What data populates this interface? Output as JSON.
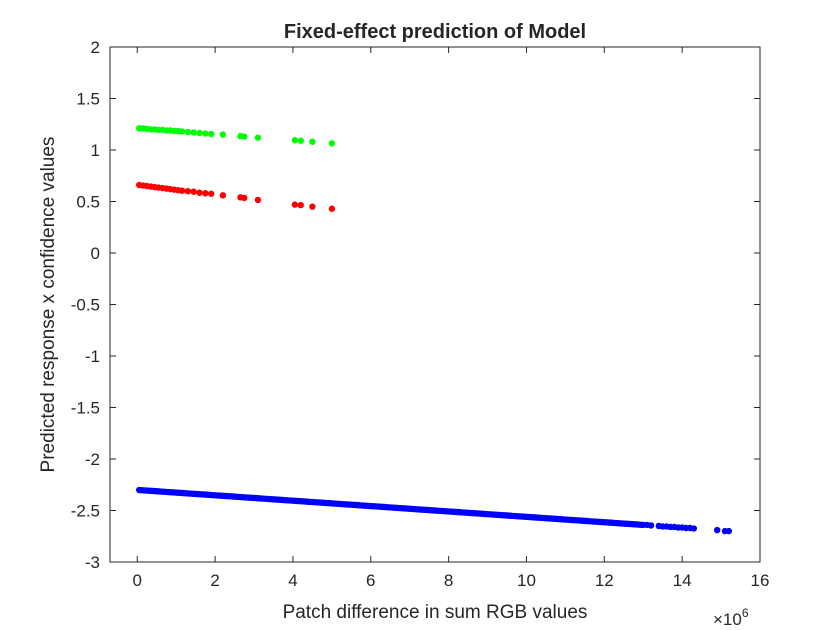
{
  "chart_data": {
    "type": "scatter",
    "title": "Fixed-effect prediction of Model",
    "xlabel": "Patch difference in sum RGB values",
    "ylabel": "Predicted response x confidence values",
    "x_exponent_label": "×10",
    "x_exponent_power": "6",
    "xlim": [
      -0.7,
      16
    ],
    "ylim": [
      -3,
      2
    ],
    "xticks": [
      0,
      2,
      4,
      6,
      8,
      10,
      12,
      14,
      16
    ],
    "yticks": [
      2,
      1.5,
      1,
      0.5,
      0,
      -0.5,
      -1,
      -1.5,
      -2,
      -2.5,
      -3
    ],
    "x_unit_scale": "1e6",
    "grid": false,
    "series": [
      {
        "color": "#00ff00",
        "x": [
          0.05,
          0.15,
          0.25,
          0.35,
          0.45,
          0.55,
          0.65,
          0.75,
          0.85,
          0.95,
          1.05,
          1.15,
          1.3,
          1.45,
          1.6,
          1.75,
          1.9,
          2.2,
          2.65,
          2.75,
          3.1,
          4.05,
          4.2,
          4.5,
          5.0
        ],
        "y": [
          1.21,
          1.21,
          1.205,
          1.2,
          1.2,
          1.195,
          1.195,
          1.19,
          1.19,
          1.185,
          1.185,
          1.18,
          1.175,
          1.17,
          1.165,
          1.16,
          1.155,
          1.15,
          1.135,
          1.13,
          1.12,
          1.095,
          1.09,
          1.08,
          1.065
        ]
      },
      {
        "color": "#ff0000",
        "x": [
          0.05,
          0.15,
          0.25,
          0.35,
          0.45,
          0.55,
          0.65,
          0.75,
          0.85,
          0.95,
          1.05,
          1.15,
          1.3,
          1.45,
          1.6,
          1.75,
          1.9,
          2.2,
          2.65,
          2.75,
          3.1,
          4.05,
          4.2,
          4.5,
          5.0
        ],
        "y": [
          0.66,
          0.655,
          0.65,
          0.645,
          0.64,
          0.635,
          0.63,
          0.625,
          0.62,
          0.615,
          0.61,
          0.605,
          0.6,
          0.595,
          0.585,
          0.58,
          0.575,
          0.56,
          0.54,
          0.535,
          0.515,
          0.47,
          0.465,
          0.45,
          0.43
        ]
      },
      {
        "color": "#0000ff",
        "x_range": [
          0.05,
          13.0
        ],
        "x_step": 0.05,
        "y_at_x0": -2.3,
        "y_slope_per_unit": -0.02615,
        "x_extra": [
          13.1,
          13.2,
          13.4,
          13.5,
          13.6,
          13.7,
          13.8,
          13.9,
          14.0,
          14.1,
          14.2,
          14.3,
          14.9,
          15.1,
          15.2
        ],
        "y_extra": [
          -2.64,
          -2.645,
          -2.65,
          -2.655,
          -2.655,
          -2.66,
          -2.66,
          -2.665,
          -2.665,
          -2.67,
          -2.67,
          -2.675,
          -2.69,
          -2.7,
          -2.7
        ]
      }
    ]
  }
}
